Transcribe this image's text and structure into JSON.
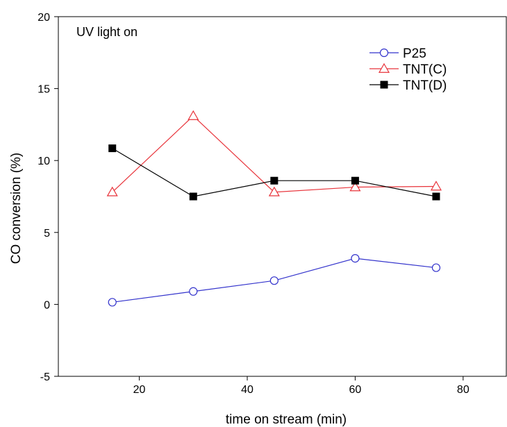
{
  "chart_data": {
    "type": "line",
    "title": "",
    "annotation": "UV light on",
    "xlabel": "time on stream (min)",
    "ylabel": "CO conversion (%)",
    "xlim": [
      5,
      88
    ],
    "ylim": [
      -5,
      20
    ],
    "xticks": [
      20,
      40,
      60,
      80
    ],
    "yticks": [
      -5,
      0,
      5,
      10,
      15,
      20
    ],
    "grid": false,
    "legend_position": "top-right",
    "x": [
      15,
      30,
      45,
      60,
      75
    ],
    "series": [
      {
        "name": "P25",
        "values": [
          0.15,
          0.9,
          1.65,
          3.2,
          2.55
        ],
        "color": "#3333cc",
        "marker": "open-circle"
      },
      {
        "name": "TNT(C)",
        "values": [
          7.8,
          13.1,
          7.8,
          8.15,
          8.2
        ],
        "color": "#e8333a",
        "marker": "open-triangle"
      },
      {
        "name": "TNT(D)",
        "values": [
          10.85,
          7.5,
          8.6,
          8.6,
          7.5
        ],
        "color": "#000000",
        "marker": "filled-square"
      }
    ]
  }
}
